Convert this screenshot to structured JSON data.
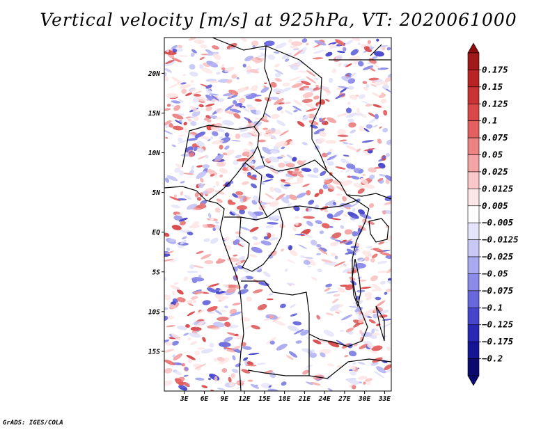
{
  "title": "Vertical velocity [m/s] at 925hPa, VT: 2020061000",
  "footer": "GrADS: IGES/COLA",
  "map": {
    "lat_ticks": [
      "20N",
      "15N",
      "10N",
      "5N",
      "EQ",
      "5S",
      "10S",
      "15S"
    ],
    "lat_values": [
      20,
      15,
      10,
      5,
      0,
      -5,
      -10,
      -15
    ],
    "lon_ticks": [
      "3E",
      "6E",
      "9E",
      "12E",
      "15E",
      "18E",
      "21E",
      "24E",
      "27E",
      "30E",
      "33E"
    ],
    "lon_values": [
      3,
      6,
      9,
      12,
      15,
      18,
      21,
      24,
      27,
      30,
      33
    ],
    "lon_range": [
      0,
      34
    ],
    "lat_range": [
      -20,
      24.5
    ]
  },
  "colorbar": {
    "labels": [
      "0.175",
      "0.15",
      "0.125",
      "0.1",
      "0.075",
      "0.05",
      "0.025",
      "0.0125",
      "0.005",
      "−0.005",
      "−0.0125",
      "−0.025",
      "−0.05",
      "−0.075",
      "−0.1",
      "−0.125",
      "−0.175",
      "−0.2"
    ],
    "colors": [
      "#a01818",
      "#b82424",
      "#c83434",
      "#d84848",
      "#e46060",
      "#ec8282",
      "#f4a4a4",
      "#fac8c8",
      "#fde6e6",
      "#ffffff",
      "#e4e4fa",
      "#c8c8f6",
      "#aaaaf0",
      "#8a8ae8",
      "#6868dc",
      "#4646cc",
      "#2828b4",
      "#141494",
      "#0a0a6e"
    ],
    "top_color": "#8c0c0c",
    "bottom_color": "#0a0a6e"
  }
}
